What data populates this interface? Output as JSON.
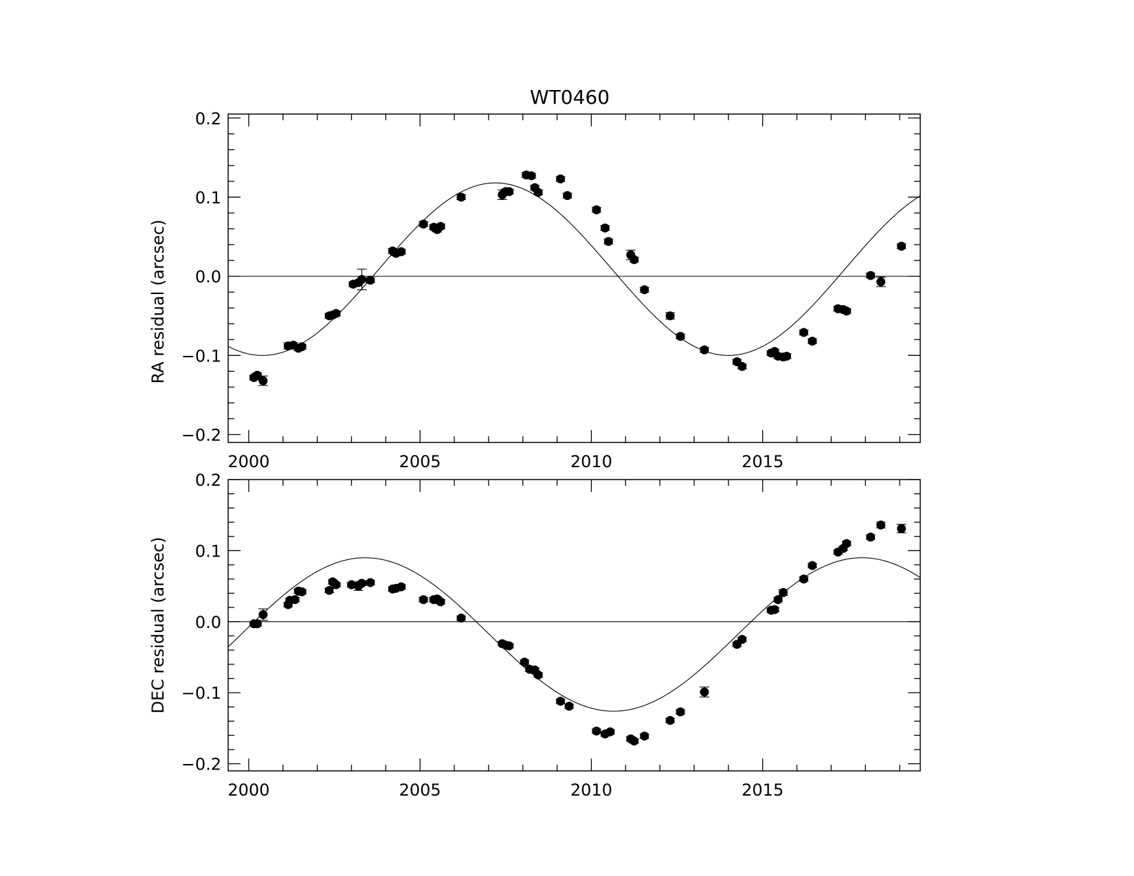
{
  "chart_data": [
    {
      "type": "scatter",
      "title": "WT0460",
      "xlabel": "",
      "ylabel": "RA residual (arcsec)",
      "xlim": [
        1999.4,
        2019.6
      ],
      "ylim": [
        -0.21,
        0.205
      ],
      "x_ticks": [
        2000,
        2005,
        2010,
        2015
      ],
      "y_ticks": [
        -0.2,
        -0.1,
        0.0,
        0.1,
        0.2
      ],
      "y_tick_labels": [
        "−0.2",
        "−0.1",
        "0.0",
        "0.1",
        "0.2"
      ],
      "x_tick_labels": [
        "2000",
        "2005",
        "2010",
        "2015"
      ],
      "grid": false,
      "zero_line": true,
      "fit": {
        "amplitude": 0.109,
        "offset": 0.009,
        "period": 13.6,
        "peak_year": 2007.2
      },
      "points": [
        {
          "x": 2000.15,
          "y": -0.128,
          "e": 0.003
        },
        {
          "x": 2000.25,
          "y": -0.125,
          "e": 0.003
        },
        {
          "x": 2000.42,
          "y": -0.132,
          "e": 0.006
        },
        {
          "x": 2001.15,
          "y": -0.088,
          "e": 0.004
        },
        {
          "x": 2001.3,
          "y": -0.087,
          "e": 0.003
        },
        {
          "x": 2001.45,
          "y": -0.091,
          "e": 0.003
        },
        {
          "x": 2001.55,
          "y": -0.089,
          "e": 0.003
        },
        {
          "x": 2002.35,
          "y": -0.05,
          "e": 0.003
        },
        {
          "x": 2002.45,
          "y": -0.049,
          "e": 0.003
        },
        {
          "x": 2002.55,
          "y": -0.047,
          "e": 0.003
        },
        {
          "x": 2003.05,
          "y": -0.01,
          "e": 0.003
        },
        {
          "x": 2003.2,
          "y": -0.008,
          "e": 0.003
        },
        {
          "x": 2003.3,
          "y": -0.004,
          "e": 0.013
        },
        {
          "x": 2003.55,
          "y": -0.005,
          "e": 0.003
        },
        {
          "x": 2004.2,
          "y": 0.032,
          "e": 0.003
        },
        {
          "x": 2004.3,
          "y": 0.029,
          "e": 0.003
        },
        {
          "x": 2004.45,
          "y": 0.031,
          "e": 0.003
        },
        {
          "x": 2005.1,
          "y": 0.066,
          "e": 0.003
        },
        {
          "x": 2005.4,
          "y": 0.062,
          "e": 0.003
        },
        {
          "x": 2005.5,
          "y": 0.059,
          "e": 0.003
        },
        {
          "x": 2005.6,
          "y": 0.063,
          "e": 0.003
        },
        {
          "x": 2006.2,
          "y": 0.1,
          "e": 0.003
        },
        {
          "x": 2007.4,
          "y": 0.103,
          "e": 0.006
        },
        {
          "x": 2007.5,
          "y": 0.107,
          "e": 0.003
        },
        {
          "x": 2007.6,
          "y": 0.107,
          "e": 0.003
        },
        {
          "x": 2008.1,
          "y": 0.128,
          "e": 0.003
        },
        {
          "x": 2008.25,
          "y": 0.127,
          "e": 0.003
        },
        {
          "x": 2008.35,
          "y": 0.112,
          "e": 0.003
        },
        {
          "x": 2008.45,
          "y": 0.106,
          "e": 0.003
        },
        {
          "x": 2009.1,
          "y": 0.123,
          "e": 0.003
        },
        {
          "x": 2009.3,
          "y": 0.102,
          "e": 0.003
        },
        {
          "x": 2010.15,
          "y": 0.084,
          "e": 0.003
        },
        {
          "x": 2010.4,
          "y": 0.061,
          "e": 0.003
        },
        {
          "x": 2010.5,
          "y": 0.044,
          "e": 0.003
        },
        {
          "x": 2011.15,
          "y": 0.027,
          "e": 0.006
        },
        {
          "x": 2011.25,
          "y": 0.021,
          "e": 0.003
        },
        {
          "x": 2011.55,
          "y": -0.017,
          "e": 0.003
        },
        {
          "x": 2012.3,
          "y": -0.05,
          "e": 0.004
        },
        {
          "x": 2012.6,
          "y": -0.076,
          "e": 0.003
        },
        {
          "x": 2013.3,
          "y": -0.093,
          "e": 0.003
        },
        {
          "x": 2014.25,
          "y": -0.108,
          "e": 0.003
        },
        {
          "x": 2014.4,
          "y": -0.114,
          "e": 0.003
        },
        {
          "x": 2015.25,
          "y": -0.097,
          "e": 0.003
        },
        {
          "x": 2015.35,
          "y": -0.095,
          "e": 0.003
        },
        {
          "x": 2015.45,
          "y": -0.101,
          "e": 0.003
        },
        {
          "x": 2015.6,
          "y": -0.102,
          "e": 0.003
        },
        {
          "x": 2015.7,
          "y": -0.101,
          "e": 0.003
        },
        {
          "x": 2016.2,
          "y": -0.071,
          "e": 0.003
        },
        {
          "x": 2016.45,
          "y": -0.082,
          "e": 0.003
        },
        {
          "x": 2017.2,
          "y": -0.041,
          "e": 0.003
        },
        {
          "x": 2017.35,
          "y": -0.042,
          "e": 0.003
        },
        {
          "x": 2017.45,
          "y": -0.044,
          "e": 0.003
        },
        {
          "x": 2018.15,
          "y": 0.001,
          "e": 0.003
        },
        {
          "x": 2018.45,
          "y": -0.007,
          "e": 0.006
        },
        {
          "x": 2019.05,
          "y": 0.038,
          "e": 0.003
        }
      ]
    },
    {
      "type": "scatter",
      "title": "",
      "xlabel": "",
      "ylabel": "DEC residual (arcsec)",
      "xlim": [
        1999.4,
        2019.6
      ],
      "ylim": [
        -0.21,
        0.2
      ],
      "x_ticks": [
        2000,
        2005,
        2010,
        2015
      ],
      "y_ticks": [
        -0.2,
        -0.1,
        0.0,
        0.1,
        0.2
      ],
      "y_tick_labels": [
        "−0.2",
        "−0.1",
        "0.0",
        "0.1",
        "0.2"
      ],
      "x_tick_labels": [
        "2000",
        "2005",
        "2010",
        "2015"
      ],
      "grid": false,
      "zero_line": true,
      "fit": {
        "amplitude": 0.108,
        "offset": -0.018,
        "period": 14.5,
        "peak_year": 2003.4
      },
      "points": [
        {
          "x": 2000.15,
          "y": -0.003,
          "e": 0.003
        },
        {
          "x": 2000.25,
          "y": -0.003,
          "e": 0.003
        },
        {
          "x": 2000.42,
          "y": 0.01,
          "e": 0.008
        },
        {
          "x": 2001.15,
          "y": 0.024,
          "e": 0.003
        },
        {
          "x": 2001.2,
          "y": 0.03,
          "e": 0.003
        },
        {
          "x": 2001.35,
          "y": 0.031,
          "e": 0.003
        },
        {
          "x": 2001.45,
          "y": 0.043,
          "e": 0.003
        },
        {
          "x": 2001.55,
          "y": 0.042,
          "e": 0.003
        },
        {
          "x": 2002.35,
          "y": 0.044,
          "e": 0.003
        },
        {
          "x": 2002.45,
          "y": 0.056,
          "e": 0.003
        },
        {
          "x": 2002.55,
          "y": 0.052,
          "e": 0.003
        },
        {
          "x": 2003.0,
          "y": 0.052,
          "e": 0.003
        },
        {
          "x": 2003.2,
          "y": 0.05,
          "e": 0.006
        },
        {
          "x": 2003.3,
          "y": 0.054,
          "e": 0.003
        },
        {
          "x": 2003.55,
          "y": 0.055,
          "e": 0.003
        },
        {
          "x": 2004.2,
          "y": 0.046,
          "e": 0.003
        },
        {
          "x": 2004.3,
          "y": 0.047,
          "e": 0.003
        },
        {
          "x": 2004.45,
          "y": 0.049,
          "e": 0.003
        },
        {
          "x": 2005.1,
          "y": 0.031,
          "e": 0.003
        },
        {
          "x": 2005.4,
          "y": 0.031,
          "e": 0.003
        },
        {
          "x": 2005.5,
          "y": 0.032,
          "e": 0.003
        },
        {
          "x": 2005.6,
          "y": 0.028,
          "e": 0.003
        },
        {
          "x": 2006.2,
          "y": 0.005,
          "e": 0.003
        },
        {
          "x": 2007.4,
          "y": -0.031,
          "e": 0.003
        },
        {
          "x": 2007.5,
          "y": -0.033,
          "e": 0.003
        },
        {
          "x": 2007.6,
          "y": -0.034,
          "e": 0.003
        },
        {
          "x": 2008.05,
          "y": -0.057,
          "e": 0.003
        },
        {
          "x": 2008.2,
          "y": -0.067,
          "e": 0.003
        },
        {
          "x": 2008.35,
          "y": -0.068,
          "e": 0.003
        },
        {
          "x": 2008.45,
          "y": -0.075,
          "e": 0.003
        },
        {
          "x": 2009.1,
          "y": -0.112,
          "e": 0.003
        },
        {
          "x": 2009.35,
          "y": -0.119,
          "e": 0.003
        },
        {
          "x": 2010.15,
          "y": -0.154,
          "e": 0.003
        },
        {
          "x": 2010.4,
          "y": -0.158,
          "e": 0.003
        },
        {
          "x": 2010.55,
          "y": -0.155,
          "e": 0.003
        },
        {
          "x": 2011.15,
          "y": -0.165,
          "e": 0.003
        },
        {
          "x": 2011.25,
          "y": -0.168,
          "e": 0.003
        },
        {
          "x": 2011.55,
          "y": -0.161,
          "e": 0.003
        },
        {
          "x": 2012.3,
          "y": -0.139,
          "e": 0.003
        },
        {
          "x": 2012.6,
          "y": -0.127,
          "e": 0.003
        },
        {
          "x": 2013.3,
          "y": -0.099,
          "e": 0.007
        },
        {
          "x": 2014.25,
          "y": -0.032,
          "e": 0.003
        },
        {
          "x": 2014.4,
          "y": -0.025,
          "e": 0.003
        },
        {
          "x": 2015.25,
          "y": 0.016,
          "e": 0.003
        },
        {
          "x": 2015.35,
          "y": 0.017,
          "e": 0.003
        },
        {
          "x": 2015.45,
          "y": 0.031,
          "e": 0.003
        },
        {
          "x": 2015.6,
          "y": 0.041,
          "e": 0.004
        },
        {
          "x": 2016.2,
          "y": 0.06,
          "e": 0.003
        },
        {
          "x": 2016.45,
          "y": 0.079,
          "e": 0.003
        },
        {
          "x": 2017.2,
          "y": 0.098,
          "e": 0.003
        },
        {
          "x": 2017.35,
          "y": 0.103,
          "e": 0.003
        },
        {
          "x": 2017.45,
          "y": 0.11,
          "e": 0.003
        },
        {
          "x": 2018.15,
          "y": 0.119,
          "e": 0.003
        },
        {
          "x": 2018.45,
          "y": 0.136,
          "e": 0.004
        },
        {
          "x": 2019.05,
          "y": 0.131,
          "e": 0.006
        }
      ]
    }
  ]
}
